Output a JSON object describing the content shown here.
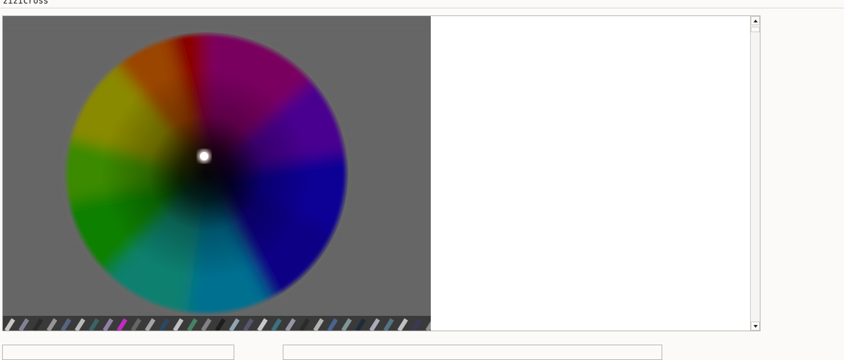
{
  "window": {
    "title": "zizicross"
  },
  "viewer": {
    "image_description_icon": "color-wheel-image-icon"
  },
  "scrollbar": {
    "up_icon": "scroll-up-arrow-icon",
    "down_icon": "scroll-down-arrow-icon"
  },
  "colors": {
    "background": "#fbfaf8",
    "image_background": "#676767",
    "border": "#b9b7b3"
  }
}
